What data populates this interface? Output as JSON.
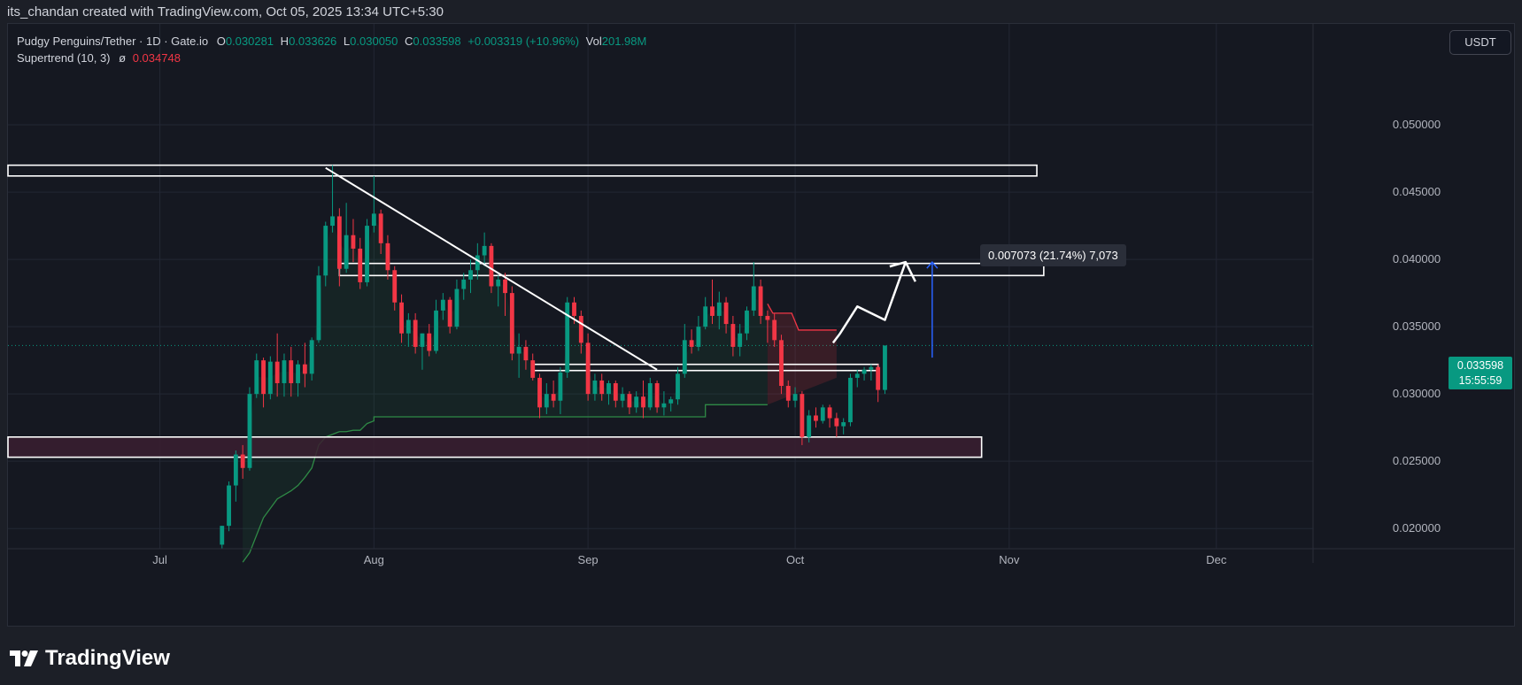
{
  "header": {
    "credit": "its_chandan created with TradingView.com, Oct 05, 2025 13:34 UTC+5:30"
  },
  "legend": {
    "symbol": "Pudgy Penguins/Tether · 1D · Gate.io",
    "open_label": "O",
    "open": "0.030281",
    "high_label": "H",
    "high": "0.033626",
    "low_label": "L",
    "low": "0.030050",
    "close_label": "C",
    "close": "0.033598",
    "change": "+0.003319 (+10.96%)",
    "vol_label": "Vol",
    "vol": "201.98M",
    "indicator": "Supertrend (10, 3)",
    "indicator_symbol": "ø",
    "indicator_value": "0.034748"
  },
  "currency_button": "USDT",
  "price_tag": {
    "price": "0.033598",
    "countdown": "15:55:59"
  },
  "measure_label": "0.007073 (21.74%) 7,073",
  "colors": {
    "up": "#089981",
    "down": "#f23645",
    "background": "#151821",
    "supertrend_up": "#2f8a46",
    "supertrend_down": "#f23645",
    "zone_fill": "#3a1f30",
    "projection_arrow": "#2962ff"
  },
  "branding": {
    "logo_text": "TradingView",
    "logo_icon": "tradingview-logo-icon"
  },
  "chart_data": {
    "type": "candlestick",
    "title": "Pudgy Penguins/Tether · 1D · Gate.io",
    "y_scale": "linear",
    "ylim": [
      0.0185,
      0.0575
    ],
    "y_ticks": [
      "0.050000",
      "0.045000",
      "0.040000",
      "0.035000",
      "0.030000",
      "0.025000",
      "0.020000"
    ],
    "y_tick_values": [
      0.05,
      0.045,
      0.04,
      0.035,
      0.03,
      0.025,
      0.02
    ],
    "x_labels": [
      "Jul",
      "Aug",
      "Sep",
      "Oct",
      "Nov",
      "Dec"
    ],
    "x_label_dates": [
      "2025-07-01",
      "2025-08-01",
      "2025-09-01",
      "2025-10-01",
      "2025-11-01",
      "2025-12-01"
    ],
    "xlim": [
      "2025-06-09",
      "2025-12-15"
    ],
    "grid": true,
    "candles_start_date": "2025-07-10",
    "candles": [
      [
        0.0188,
        0.0202,
        0.0185,
        0.0202
      ],
      [
        0.0202,
        0.0235,
        0.0198,
        0.0232
      ],
      [
        0.0232,
        0.0258,
        0.022,
        0.0255
      ],
      [
        0.0255,
        0.0262,
        0.0237,
        0.0245
      ],
      [
        0.0245,
        0.0305,
        0.0243,
        0.03
      ],
      [
        0.03,
        0.033,
        0.0297,
        0.0325
      ],
      [
        0.0325,
        0.0327,
        0.029,
        0.03
      ],
      [
        0.03,
        0.0328,
        0.0296,
        0.0324
      ],
      [
        0.0324,
        0.0345,
        0.0298,
        0.0308
      ],
      [
        0.0308,
        0.033,
        0.0298,
        0.0325
      ],
      [
        0.0325,
        0.0335,
        0.0298,
        0.0308
      ],
      [
        0.0308,
        0.0325,
        0.0298,
        0.0322
      ],
      [
        0.0322,
        0.0338,
        0.0305,
        0.0315
      ],
      [
        0.0315,
        0.0342,
        0.031,
        0.034
      ],
      [
        0.034,
        0.0395,
        0.0338,
        0.0388
      ],
      [
        0.0388,
        0.0428,
        0.038,
        0.0425
      ],
      [
        0.0425,
        0.047,
        0.042,
        0.0432
      ],
      [
        0.0432,
        0.0438,
        0.038,
        0.0393
      ],
      [
        0.0393,
        0.0442,
        0.039,
        0.0418
      ],
      [
        0.0418,
        0.043,
        0.0398,
        0.0408
      ],
      [
        0.0408,
        0.0416,
        0.0378,
        0.0383
      ],
      [
        0.0383,
        0.043,
        0.038,
        0.0425
      ],
      [
        0.0425,
        0.0462,
        0.042,
        0.0434
      ],
      [
        0.0434,
        0.0437,
        0.0404,
        0.0412
      ],
      [
        0.0412,
        0.0418,
        0.0385,
        0.0392
      ],
      [
        0.0392,
        0.0395,
        0.0362,
        0.0368
      ],
      [
        0.0368,
        0.0374,
        0.0338,
        0.0345
      ],
      [
        0.0345,
        0.036,
        0.0335,
        0.0355
      ],
      [
        0.0355,
        0.036,
        0.033,
        0.0335
      ],
      [
        0.0335,
        0.0345,
        0.0318,
        0.0345
      ],
      [
        0.0345,
        0.0352,
        0.0328,
        0.0332
      ],
      [
        0.0332,
        0.037,
        0.033,
        0.0362
      ],
      [
        0.0362,
        0.0375,
        0.0355,
        0.037
      ],
      [
        0.037,
        0.0372,
        0.0345,
        0.035
      ],
      [
        0.035,
        0.0385,
        0.0348,
        0.0378
      ],
      [
        0.0378,
        0.039,
        0.037,
        0.0385
      ],
      [
        0.0385,
        0.04,
        0.0375,
        0.0392
      ],
      [
        0.0392,
        0.0412,
        0.0385,
        0.0403
      ],
      [
        0.0403,
        0.042,
        0.0395,
        0.041
      ],
      [
        0.041,
        0.0412,
        0.0375,
        0.038
      ],
      [
        0.038,
        0.0388,
        0.0365,
        0.0385
      ],
      [
        0.0385,
        0.039,
        0.0358,
        0.0375
      ],
      [
        0.0375,
        0.038,
        0.0325,
        0.033
      ],
      [
        0.033,
        0.0345,
        0.0312,
        0.0335
      ],
      [
        0.0335,
        0.034,
        0.0318,
        0.0325
      ],
      [
        0.0325,
        0.033,
        0.031,
        0.0312
      ],
      [
        0.0312,
        0.0315,
        0.0282,
        0.029
      ],
      [
        0.029,
        0.0308,
        0.0285,
        0.03
      ],
      [
        0.03,
        0.031,
        0.029,
        0.0295
      ],
      [
        0.0295,
        0.032,
        0.0285,
        0.0316
      ],
      [
        0.0316,
        0.0372,
        0.0312,
        0.0368
      ],
      [
        0.0368,
        0.0372,
        0.0352,
        0.0358
      ],
      [
        0.0358,
        0.0362,
        0.033,
        0.0338
      ],
      [
        0.0338,
        0.0345,
        0.0295,
        0.03
      ],
      [
        0.03,
        0.0315,
        0.0295,
        0.031
      ],
      [
        0.031,
        0.0315,
        0.0295,
        0.03
      ],
      [
        0.03,
        0.031,
        0.0292,
        0.0308
      ],
      [
        0.0308,
        0.031,
        0.029,
        0.0295
      ],
      [
        0.0295,
        0.0305,
        0.029,
        0.03
      ],
      [
        0.03,
        0.0302,
        0.0285,
        0.029
      ],
      [
        0.029,
        0.0302,
        0.0286,
        0.0298
      ],
      [
        0.0298,
        0.031,
        0.0282,
        0.029
      ],
      [
        0.029,
        0.0312,
        0.0288,
        0.0308
      ],
      [
        0.0308,
        0.031,
        0.0286,
        0.029
      ],
      [
        0.029,
        0.0302,
        0.0284,
        0.0293
      ],
      [
        0.0293,
        0.0298,
        0.0287,
        0.0296
      ],
      [
        0.0296,
        0.032,
        0.0292,
        0.0315
      ],
      [
        0.0315,
        0.0352,
        0.0312,
        0.034
      ],
      [
        0.034,
        0.0348,
        0.033,
        0.0335
      ],
      [
        0.0335,
        0.0358,
        0.0332,
        0.035
      ],
      [
        0.035,
        0.0372,
        0.0348,
        0.0365
      ],
      [
        0.0365,
        0.0385,
        0.0352,
        0.0358
      ],
      [
        0.0358,
        0.0376,
        0.0348,
        0.0368
      ],
      [
        0.0368,
        0.0372,
        0.0345,
        0.0352
      ],
      [
        0.0352,
        0.0358,
        0.0328,
        0.0335
      ],
      [
        0.0335,
        0.0352,
        0.0328,
        0.0345
      ],
      [
        0.0345,
        0.0365,
        0.034,
        0.0362
      ],
      [
        0.0362,
        0.0398,
        0.0358,
        0.038
      ],
      [
        0.038,
        0.0385,
        0.0352,
        0.0358
      ],
      [
        0.0358,
        0.0362,
        0.0338,
        0.0355
      ],
      [
        0.0355,
        0.036,
        0.0335,
        0.034
      ],
      [
        0.034,
        0.0344,
        0.03,
        0.0306
      ],
      [
        0.0306,
        0.031,
        0.029,
        0.0295
      ],
      [
        0.0295,
        0.0305,
        0.029,
        0.03
      ],
      [
        0.03,
        0.0302,
        0.0262,
        0.0268
      ],
      [
        0.0268,
        0.0288,
        0.0264,
        0.0284
      ],
      [
        0.0284,
        0.029,
        0.0275,
        0.028
      ],
      [
        0.028,
        0.0292,
        0.0278,
        0.029
      ],
      [
        0.029,
        0.0292,
        0.0275,
        0.0282
      ],
      [
        0.0282,
        0.0286,
        0.0268,
        0.0276
      ],
      [
        0.0276,
        0.0282,
        0.027,
        0.0279
      ],
      [
        0.0279,
        0.0315,
        0.0276,
        0.0312
      ],
      [
        0.0312,
        0.0318,
        0.0305,
        0.0315
      ],
      [
        0.0315,
        0.032,
        0.031,
        0.0318
      ],
      [
        0.0318,
        0.0322,
        0.031,
        0.032
      ],
      [
        0.032,
        0.0322,
        0.0294,
        0.0303
      ],
      [
        0.0303,
        0.0336,
        0.03,
        0.0336
      ]
    ],
    "supertrend": {
      "up_values": [
        0.0175,
        0.0182,
        0.0195,
        0.0208,
        0.0215,
        0.0222,
        0.0225,
        0.0228,
        0.0232,
        0.0238,
        0.0245,
        0.0262,
        0.0268,
        0.027,
        0.0272,
        0.0272,
        0.0273,
        0.0273,
        0.0278,
        0.028
      ],
      "up_dates": [
        "2025-07-13",
        "2025-07-14",
        "2025-07-15",
        "2025-07-16",
        "2025-07-17",
        "2025-07-18",
        "2025-07-19",
        "2025-07-20",
        "2025-07-21",
        "2025-07-22",
        "2025-07-23",
        "2025-07-24",
        "2025-07-25",
        "2025-07-26",
        "2025-07-27",
        "2025-07-28",
        "2025-07-29",
        "2025-07-30",
        "2025-07-31",
        "2025-08-01"
      ],
      "flat_segments": [
        {
          "from": "2025-08-01",
          "to": "2025-09-18",
          "value": 0.0283
        },
        {
          "from": "2025-09-18",
          "to": "2025-09-27",
          "value": 0.0292
        }
      ],
      "down_segment": {
        "from": "2025-09-27",
        "to": "2025-10-07",
        "start": 0.0367,
        "mid": 0.036,
        "end": 0.03475
      }
    },
    "annotations": [
      {
        "type": "zone",
        "name": "resistance-zone-top",
        "from": "2025-06-09",
        "to": "2025-11-05",
        "y_top": 0.047,
        "y_bottom": 0.0462
      },
      {
        "type": "zone",
        "name": "resistance-zone-mid",
        "from": "2025-07-27",
        "to": "2025-11-06",
        "y_top": 0.0397,
        "y_bottom": 0.0388
      },
      {
        "type": "zone",
        "name": "breakout-zone",
        "from": "2025-08-24",
        "to": "2025-10-13",
        "y_top": 0.0322,
        "y_bottom": 0.0318
      },
      {
        "type": "zone",
        "name": "support-zone",
        "from": "2025-06-09",
        "to": "2025-10-28",
        "y_top": 0.0268,
        "y_bottom": 0.0253
      },
      {
        "type": "trendline",
        "from": [
          "2025-07-25",
          0.0468
        ],
        "to": [
          "2025-09-11",
          0.0318
        ]
      },
      {
        "type": "projection_path",
        "points": [
          [
            "2025-10-07",
            0.0338
          ],
          [
            "2025-10-07",
            0.0345
          ],
          [
            "2025-10-10",
            0.0365
          ],
          [
            "2025-10-14",
            0.0355
          ],
          [
            "2025-10-17",
            0.0398
          ]
        ]
      },
      {
        "type": "measure",
        "from": [
          "2025-10-17",
          0.0327
        ],
        "to": [
          "2025-10-17",
          0.0398
        ],
        "label": "0.007073 (21.74%) 7,073"
      }
    ]
  }
}
